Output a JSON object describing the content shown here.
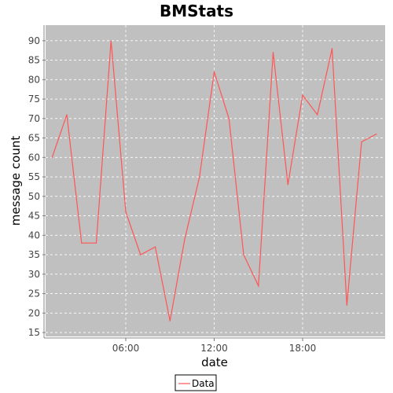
{
  "chart_data": {
    "type": "line",
    "title": "BMStats",
    "xlabel": "date",
    "ylabel": "message count",
    "x_tick_labels": [
      "06:00",
      "12:00",
      "18:00"
    ],
    "y_ticks": [
      15,
      20,
      25,
      30,
      35,
      40,
      45,
      50,
      55,
      60,
      65,
      70,
      75,
      80,
      85,
      90
    ],
    "ylim": [
      14,
      94
    ],
    "grid": true,
    "legend_position": "bottom",
    "plot_background": "#c0c0c0",
    "series": [
      {
        "name": "Data",
        "color": "#ff5555",
        "x": [
          "01:00",
          "02:00",
          "03:00",
          "04:00",
          "05:00",
          "06:00",
          "07:00",
          "08:00",
          "09:00",
          "10:00",
          "11:00",
          "12:00",
          "13:00",
          "14:00",
          "15:00",
          "16:00",
          "17:00",
          "18:00",
          "19:00",
          "20:00",
          "21:00",
          "22:00",
          "23:00"
        ],
        "values": [
          60,
          71,
          38,
          38,
          90,
          46,
          35,
          37,
          18,
          39,
          55,
          82,
          70,
          35,
          27,
          87,
          53,
          76,
          71,
          88,
          22,
          64,
          66
        ]
      }
    ]
  }
}
